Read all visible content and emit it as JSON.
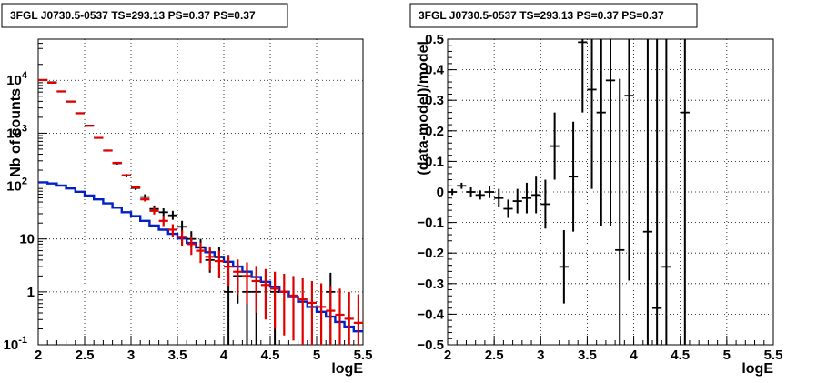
{
  "chart_data": [
    {
      "type": "scatter",
      "title": "3FGL J0730.5-0537 TS=293.13 PS=0.37 PS=0.37",
      "xlabel": "logE",
      "ylabel": "Nb of counts",
      "xlim": [
        2,
        5.5
      ],
      "ylim": [
        0.1,
        60000
      ],
      "yscale": "log",
      "grid": true,
      "xticks": [
        2,
        2.5,
        3,
        3.5,
        4,
        4.5,
        5,
        5.5
      ],
      "xtick_labels": [
        "2",
        "2.5",
        "3",
        "3.5",
        "4",
        "4.5",
        "5",
        "5.5"
      ],
      "ytick_labels": [
        "10^-1",
        "1",
        "10",
        "10^2",
        "10^3",
        "10^4"
      ],
      "colors": {
        "data": "#000000",
        "total_model": "#e00000",
        "source_model": "#0020c8"
      },
      "series": [
        {
          "kind": "points_with_errors",
          "color": "#000000",
          "xwidth": 0.05,
          "points": [
            {
              "x": 2.05,
              "y": 10200,
              "lo": 10000,
              "hi": 10400
            },
            {
              "x": 2.15,
              "y": 9200,
              "lo": 9000,
              "hi": 9400
            },
            {
              "x": 2.25,
              "y": 6200,
              "lo": 6050,
              "hi": 6350
            },
            {
              "x": 2.35,
              "y": 4000,
              "lo": 3900,
              "hi": 4100
            },
            {
              "x": 2.45,
              "y": 2400,
              "lo": 2330,
              "hi": 2470
            },
            {
              "x": 2.55,
              "y": 1400,
              "lo": 1350,
              "hi": 1450
            },
            {
              "x": 2.65,
              "y": 820,
              "lo": 790,
              "hi": 850
            },
            {
              "x": 2.75,
              "y": 470,
              "lo": 450,
              "hi": 490
            },
            {
              "x": 2.85,
              "y": 270,
              "lo": 255,
              "hi": 285
            },
            {
              "x": 2.95,
              "y": 158,
              "lo": 146,
              "hi": 170
            },
            {
              "x": 3.05,
              "y": 92,
              "lo": 84,
              "hi": 101
            },
            {
              "x": 3.15,
              "y": 62,
              "lo": 55,
              "hi": 70
            },
            {
              "x": 3.25,
              "y": 37,
              "lo": 31,
              "hi": 43
            },
            {
              "x": 3.35,
              "y": 32,
              "lo": 27,
              "hi": 38
            },
            {
              "x": 3.45,
              "y": 28,
              "lo": 23,
              "hi": 34
            },
            {
              "x": 3.55,
              "y": 17,
              "lo": 13,
              "hi": 22
            },
            {
              "x": 3.65,
              "y": 10,
              "lo": 7,
              "hi": 14
            },
            {
              "x": 3.75,
              "y": 7,
              "lo": 4.5,
              "hi": 10
            },
            {
              "x": 3.85,
              "y": 4,
              "lo": 2.3,
              "hi": 6.5
            },
            {
              "x": 3.95,
              "y": 4.5,
              "lo": 2.7,
              "hi": 7
            },
            {
              "x": 4.05,
              "y": 1,
              "lo": 0.1,
              "hi": 2.3
            },
            {
              "x": 4.15,
              "y": 2,
              "lo": 0.6,
              "hi": 3.5
            },
            {
              "x": 4.25,
              "y": 1,
              "lo": 0.1,
              "hi": 2.3
            },
            {
              "x": 4.35,
              "y": 1,
              "lo": 0.1,
              "hi": 2.3
            },
            {
              "x": 4.55,
              "y": 1,
              "lo": 0.1,
              "hi": 2.3
            },
            {
              "x": 5.15,
              "y": 1,
              "lo": 0.1,
              "hi": 2.3
            }
          ]
        },
        {
          "kind": "model_points",
          "color": "#e00000",
          "xwidth": 0.05,
          "points": [
            {
              "x": 2.05,
              "y": 10100,
              "lo": 10100,
              "hi": 10100
            },
            {
              "x": 2.15,
              "y": 9000,
              "lo": 9000,
              "hi": 9000
            },
            {
              "x": 2.25,
              "y": 6150,
              "lo": 6150,
              "hi": 6150
            },
            {
              "x": 2.35,
              "y": 3950,
              "lo": 3950,
              "hi": 3950
            },
            {
              "x": 2.45,
              "y": 2380,
              "lo": 2380,
              "hi": 2380
            },
            {
              "x": 2.55,
              "y": 1380,
              "lo": 1380,
              "hi": 1380
            },
            {
              "x": 2.65,
              "y": 815,
              "lo": 815,
              "hi": 815
            },
            {
              "x": 2.75,
              "y": 470,
              "lo": 470,
              "hi": 470
            },
            {
              "x": 2.85,
              "y": 275,
              "lo": 275,
              "hi": 275
            },
            {
              "x": 2.95,
              "y": 160,
              "lo": 155,
              "hi": 165
            },
            {
              "x": 3.05,
              "y": 95,
              "lo": 90,
              "hi": 100
            },
            {
              "x": 3.15,
              "y": 56,
              "lo": 51,
              "hi": 61
            },
            {
              "x": 3.25,
              "y": 34,
              "lo": 29,
              "hi": 39
            },
            {
              "x": 3.35,
              "y": 22,
              "lo": 17.5,
              "hi": 27
            },
            {
              "x": 3.45,
              "y": 15,
              "lo": 11,
              "hi": 19
            },
            {
              "x": 3.55,
              "y": 11,
              "lo": 7.5,
              "hi": 14.5
            },
            {
              "x": 3.65,
              "y": 8,
              "lo": 5,
              "hi": 11
            },
            {
              "x": 3.75,
              "y": 6,
              "lo": 3.5,
              "hi": 8.5
            },
            {
              "x": 3.85,
              "y": 4.6,
              "lo": 2.5,
              "hi": 7
            },
            {
              "x": 3.95,
              "y": 3.8,
              "lo": 1.8,
              "hi": 6
            },
            {
              "x": 4.05,
              "y": 3.0,
              "lo": 1.3,
              "hi": 5
            },
            {
              "x": 4.15,
              "y": 2.4,
              "lo": 0.9,
              "hi": 4.1
            },
            {
              "x": 4.25,
              "y": 2.0,
              "lo": 0.6,
              "hi": 3.6
            },
            {
              "x": 4.35,
              "y": 1.6,
              "lo": 0.4,
              "hi": 3.1
            },
            {
              "x": 4.45,
              "y": 1.35,
              "lo": 0.3,
              "hi": 2.7
            },
            {
              "x": 4.55,
              "y": 1.15,
              "lo": 0.2,
              "hi": 2.4
            },
            {
              "x": 4.65,
              "y": 1.0,
              "lo": 0.15,
              "hi": 2.2
            },
            {
              "x": 4.75,
              "y": 0.85,
              "lo": 0.12,
              "hi": 2.0
            },
            {
              "x": 4.85,
              "y": 0.72,
              "lo": 0.1,
              "hi": 1.8
            },
            {
              "x": 4.95,
              "y": 0.62,
              "lo": 0.1,
              "hi": 1.6
            },
            {
              "x": 5.05,
              "y": 0.52,
              "lo": 0.1,
              "hi": 1.45
            },
            {
              "x": 5.15,
              "y": 0.44,
              "lo": 0.1,
              "hi": 1.3
            },
            {
              "x": 5.25,
              "y": 0.37,
              "lo": 0.1,
              "hi": 1.15
            },
            {
              "x": 5.35,
              "y": 0.31,
              "lo": 0.1,
              "hi": 1.0
            },
            {
              "x": 5.45,
              "y": 0.26,
              "lo": 0.1,
              "hi": 0.9
            }
          ]
        },
        {
          "kind": "histogram_line",
          "color": "#0020c8",
          "binwidth": 0.1,
          "bins": [
            {
              "x": 2.05,
              "y": 118
            },
            {
              "x": 2.15,
              "y": 112
            },
            {
              "x": 2.25,
              "y": 102
            },
            {
              "x": 2.35,
              "y": 90
            },
            {
              "x": 2.45,
              "y": 78
            },
            {
              "x": 2.55,
              "y": 66
            },
            {
              "x": 2.65,
              "y": 56
            },
            {
              "x": 2.75,
              "y": 47
            },
            {
              "x": 2.85,
              "y": 39
            },
            {
              "x": 2.95,
              "y": 32
            },
            {
              "x": 3.05,
              "y": 27
            },
            {
              "x": 3.15,
              "y": 22
            },
            {
              "x": 3.25,
              "y": 18
            },
            {
              "x": 3.35,
              "y": 15
            },
            {
              "x": 3.45,
              "y": 12.5
            },
            {
              "x": 3.55,
              "y": 10.2
            },
            {
              "x": 3.65,
              "y": 8.4
            },
            {
              "x": 3.75,
              "y": 6.9
            },
            {
              "x": 3.85,
              "y": 5.6
            },
            {
              "x": 3.95,
              "y": 4.6
            },
            {
              "x": 4.05,
              "y": 3.7
            },
            {
              "x": 4.15,
              "y": 3.0
            },
            {
              "x": 4.25,
              "y": 2.4
            },
            {
              "x": 4.35,
              "y": 1.9
            },
            {
              "x": 4.45,
              "y": 1.55
            },
            {
              "x": 4.55,
              "y": 1.25
            },
            {
              "x": 4.65,
              "y": 1.0
            },
            {
              "x": 4.75,
              "y": 0.8
            },
            {
              "x": 4.85,
              "y": 0.65
            },
            {
              "x": 4.95,
              "y": 0.52
            },
            {
              "x": 5.05,
              "y": 0.42
            },
            {
              "x": 5.15,
              "y": 0.34
            },
            {
              "x": 5.25,
              "y": 0.27
            },
            {
              "x": 5.35,
              "y": 0.22
            },
            {
              "x": 5.45,
              "y": 0.18
            }
          ]
        }
      ]
    },
    {
      "type": "scatter",
      "title": "3FGL J0730.5-0537 TS=293.13 PS=0.37 PS=0.37",
      "xlabel": "logE",
      "ylabel": "(data-model)/model",
      "xlim": [
        2,
        5.5
      ],
      "ylim": [
        -0.5,
        0.5
      ],
      "yscale": "linear",
      "grid": true,
      "xticks": [
        2,
        2.5,
        3,
        3.5,
        4,
        4.5,
        5,
        5.5
      ],
      "xtick_labels": [
        "2",
        "2.5",
        "3",
        "3.5",
        "4",
        "4.5",
        "5",
        "5.5"
      ],
      "yticks": [
        -0.5,
        -0.4,
        -0.3,
        -0.2,
        -0.1,
        0,
        0.1,
        0.2,
        0.3,
        0.4,
        0.5
      ],
      "ytick_labels": [
        "−0.5",
        "−0.4",
        "−0.3",
        "−0.2",
        "−0.1",
        "0",
        "0.1",
        "0.2",
        "0.3",
        "0.4",
        "0.5"
      ],
      "colors": {
        "data": "#000000"
      },
      "series": [
        {
          "kind": "points_with_errors",
          "color": "#000000",
          "xwidth": 0.05,
          "points": [
            {
              "x": 2.05,
              "y": 0.0,
              "lo": -0.01,
              "hi": 0.01
            },
            {
              "x": 2.15,
              "y": 0.02,
              "lo": 0.01,
              "hi": 0.03
            },
            {
              "x": 2.25,
              "y": 0.0,
              "lo": -0.015,
              "hi": 0.015
            },
            {
              "x": 2.35,
              "y": -0.01,
              "lo": -0.025,
              "hi": 0.005
            },
            {
              "x": 2.45,
              "y": 0.0,
              "lo": -0.02,
              "hi": 0.02
            },
            {
              "x": 2.55,
              "y": -0.02,
              "lo": -0.05,
              "hi": 0.01
            },
            {
              "x": 2.65,
              "y": -0.055,
              "lo": -0.085,
              "hi": -0.025
            },
            {
              "x": 2.75,
              "y": -0.03,
              "lo": -0.07,
              "hi": 0.01
            },
            {
              "x": 2.85,
              "y": -0.02,
              "lo": -0.07,
              "hi": 0.03
            },
            {
              "x": 2.95,
              "y": -0.01,
              "lo": -0.07,
              "hi": 0.05
            },
            {
              "x": 3.05,
              "y": -0.04,
              "lo": -0.12,
              "hi": 0.04
            },
            {
              "x": 3.15,
              "y": 0.15,
              "lo": 0.04,
              "hi": 0.26
            },
            {
              "x": 3.25,
              "y": -0.245,
              "lo": -0.365,
              "hi": -0.125
            },
            {
              "x": 3.35,
              "y": 0.05,
              "lo": -0.13,
              "hi": 0.23
            },
            {
              "x": 3.45,
              "y": 0.49,
              "lo": 0.26,
              "hi": 0.5
            },
            {
              "x": 3.55,
              "y": 0.335,
              "lo": 0.01,
              "hi": 0.5
            },
            {
              "x": 3.65,
              "y": 0.26,
              "lo": -0.11,
              "hi": 0.5
            },
            {
              "x": 3.75,
              "y": 0.365,
              "lo": -0.11,
              "hi": 0.5
            },
            {
              "x": 3.85,
              "y": -0.19,
              "lo": -0.5,
              "hi": 0.37
            },
            {
              "x": 3.95,
              "y": 0.315,
              "lo": -0.29,
              "hi": 0.5
            },
            {
              "x": 4.15,
              "y": -0.13,
              "lo": -0.5,
              "hi": 0.5
            },
            {
              "x": 4.25,
              "y": -0.38,
              "lo": -0.5,
              "hi": 0.5
            },
            {
              "x": 4.35,
              "y": -0.245,
              "lo": -0.5,
              "hi": 0.5
            },
            {
              "x": 4.55,
              "y": 0.26,
              "lo": -0.5,
              "hi": 0.5
            }
          ]
        }
      ]
    }
  ]
}
